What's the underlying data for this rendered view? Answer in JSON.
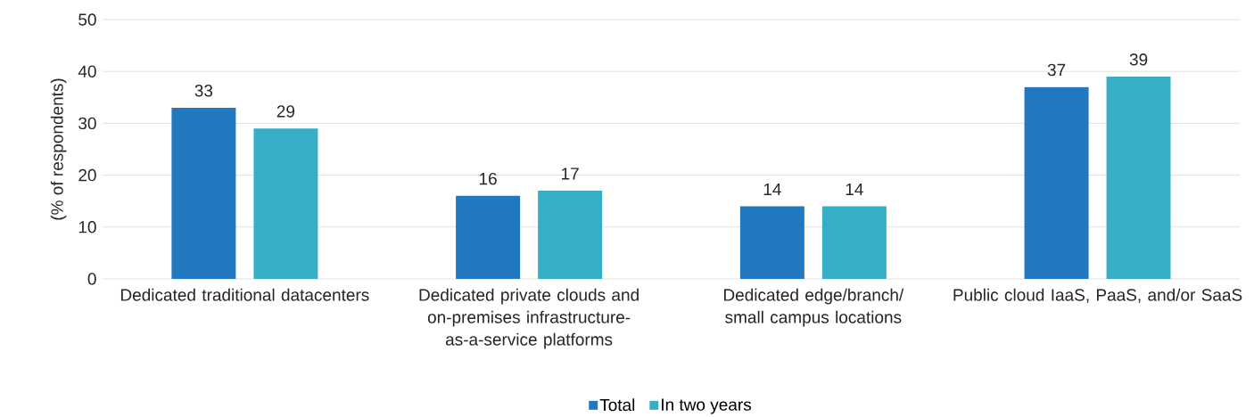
{
  "chart_data": {
    "type": "bar",
    "ylabel": "(% of respondents)",
    "categories": [
      "Dedicated traditional datacenters",
      "Dedicated private clouds and on-premises infrastructure-as-a-service platforms",
      "Dedicated edge/branch/ small campus locations",
      "Public cloud IaaS, PaaS, and/or SaaS"
    ],
    "series": [
      {
        "name": "Total",
        "color": "#2278be",
        "values": [
          33,
          16,
          14,
          37
        ]
      },
      {
        "name": "In two years",
        "color": "#36aec6",
        "values": [
          29,
          17,
          14,
          39
        ]
      }
    ],
    "ylim": [
      0,
      50
    ],
    "yticks": [
      0,
      10,
      20,
      30,
      40,
      50
    ],
    "grid": "y",
    "legend": "bottom",
    "data_labels": true
  }
}
